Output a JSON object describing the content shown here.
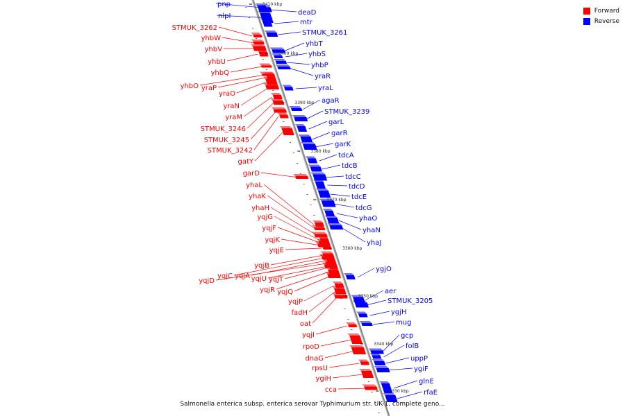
{
  "legend": {
    "forward": {
      "label": "Forward",
      "color": "#ff0000"
    },
    "reverse": {
      "label": "Reverse",
      "color": "#0000ff"
    }
  },
  "caption": "Salmonella enterica subsp. enterica serovar Typhimurium str. UK-1, complete geno...",
  "kbp_ticks": [
    "3410 kbp",
    "3400 kbp",
    "3390 kbp",
    "3380 kbp",
    "3370 kbp",
    "3360 kbp",
    "3350 kbp",
    "3340 kbp",
    "3330 kbp"
  ],
  "genes_reverse": [
    "pnp",
    "nlpI",
    "deaD",
    "mtr",
    "STMUK_3261",
    "yhbT",
    "yhbS",
    "yhbP",
    "yraR",
    "yraL",
    "agaR",
    "STMUK_3239",
    "garL",
    "garR",
    "garK",
    "tdcA",
    "tdcB",
    "tdcC",
    "tdcD",
    "tdcE",
    "tdcG",
    "yhaO",
    "yhaN",
    "yhaJ",
    "ygjO",
    "aer",
    "STMUK_3205",
    "ygjH",
    "mug",
    "gcp",
    "folB",
    "uppP",
    "ygiF",
    "glnE",
    "rfaE"
  ],
  "genes_forward": [
    "STMUK_3262",
    "yhbW",
    "yhbV",
    "yhbU",
    "yhbQ",
    "yhbO",
    "yraP",
    "yraO",
    "yraN",
    "yraM",
    "STMUK_3246",
    "STMUK_3245",
    "STMUK_3242",
    "gatY",
    "garD",
    "yhaL",
    "yhaK",
    "yhaH",
    "yqjG",
    "yqjF",
    "yqjK",
    "yqjE",
    "yqjB",
    "yqjC",
    "yqjA",
    "yqjD",
    "yqjU",
    "yqjT",
    "yqjR",
    "yqjQ",
    "yqjP",
    "fadH",
    "oat",
    "yqjI",
    "rpoD",
    "dnaG",
    "rpsU",
    "ygiH",
    "cca"
  ]
}
